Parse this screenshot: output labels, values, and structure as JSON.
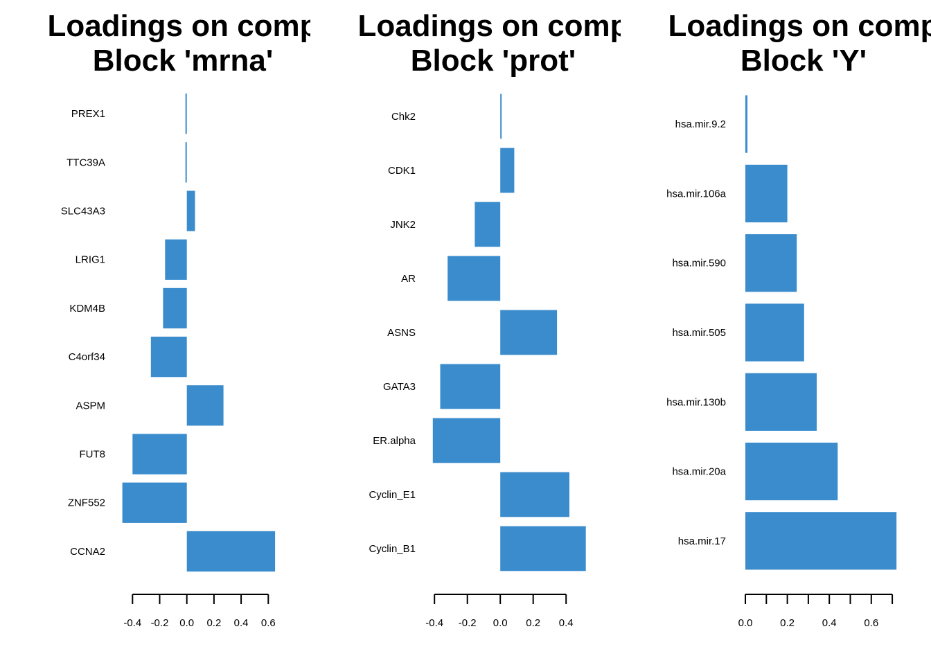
{
  "chart_data": [
    {
      "type": "bar",
      "orientation": "horizontal",
      "title_lines": [
        "Loadings on comp",
        "Block 'mrna'"
      ],
      "categories": [
        "PREX1",
        "TTC39A",
        "SLC43A3",
        "LRIG1",
        "KDM4B",
        "C4orf34",
        "ASPM",
        "FUT8",
        "ZNF552",
        "CCNA2"
      ],
      "values": [
        -0.005,
        -0.01,
        0.06,
        -0.16,
        -0.175,
        -0.265,
        0.27,
        -0.4,
        -0.475,
        0.65
      ],
      "xticks": [
        -0.4,
        -0.2,
        0.0,
        0.2,
        0.4,
        0.6
      ],
      "tick_labels": [
        "-0.4",
        "-0.2",
        "0.0",
        "0.2",
        "0.4",
        "0.6"
      ],
      "color": "#3a8ccd"
    },
    {
      "type": "bar",
      "orientation": "horizontal",
      "title_lines": [
        "Loadings on comp",
        "Block 'prot'"
      ],
      "categories": [
        "Chk2",
        "CDK1",
        "JNK2",
        "AR",
        "ASNS",
        "GATA3",
        "ER.alpha",
        "Cyclin_E1",
        "Cyclin_B1"
      ],
      "values": [
        0.003,
        0.085,
        -0.155,
        -0.32,
        0.345,
        -0.365,
        -0.41,
        0.42,
        0.52
      ],
      "xticks": [
        -0.4,
        -0.2,
        0.0,
        0.2,
        0.4
      ],
      "tick_labels": [
        "-0.4",
        "-0.2",
        "0.0",
        "0.2",
        "0.4"
      ],
      "color": "#3a8ccd"
    },
    {
      "type": "bar",
      "orientation": "horizontal",
      "title_lines": [
        "Loadings on comp",
        "Block 'Y'"
      ],
      "categories": [
        "hsa.mir.9.2",
        "hsa.mir.106a",
        "hsa.mir.590",
        "hsa.mir.505",
        "hsa.mir.130b",
        "hsa.mir.20a",
        "hsa.mir.17"
      ],
      "values": [
        0.01,
        0.2,
        0.245,
        0.28,
        0.34,
        0.44,
        0.72
      ],
      "xticks": [
        0.0,
        0.1,
        0.2,
        0.3,
        0.4,
        0.5,
        0.6,
        0.7
      ],
      "tick_labels": [
        "0.0",
        "",
        "0.2",
        "",
        "0.4",
        "",
        "0.6",
        ""
      ],
      "color": "#3a8ccd"
    }
  ]
}
